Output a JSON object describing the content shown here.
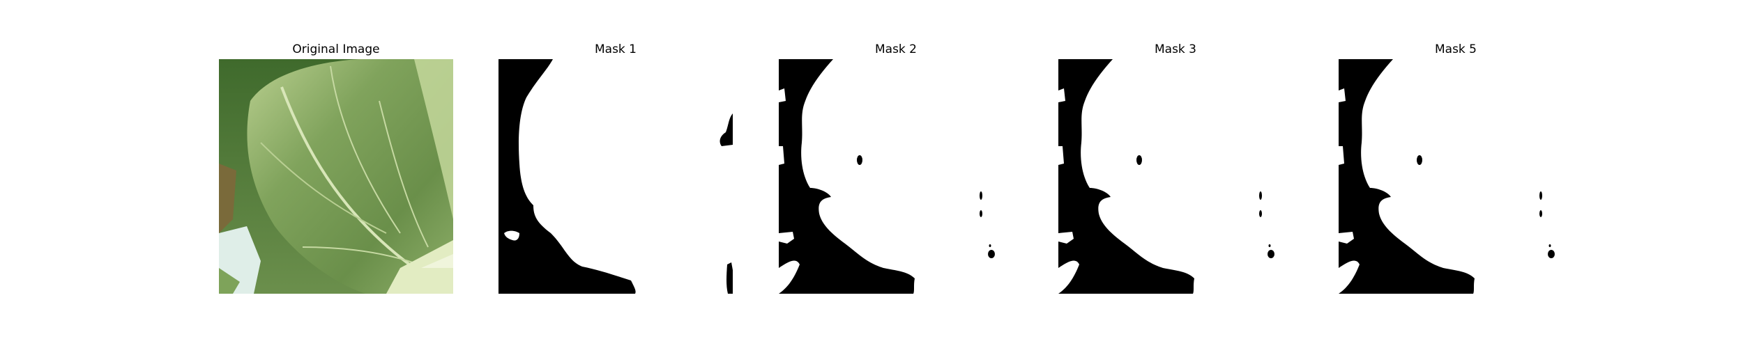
{
  "figure": {
    "panels": [
      {
        "title": "Original Image",
        "kind": "photo"
      },
      {
        "title": "Mask 1",
        "kind": "mask"
      },
      {
        "title": "Mask 2",
        "kind": "mask"
      },
      {
        "title": "Mask 3",
        "kind": "mask"
      },
      {
        "title": "Mask 5",
        "kind": "mask"
      }
    ]
  },
  "colors": {
    "mask_foreground": "#ffffff",
    "mask_background": "#000000",
    "leaf_light": "#b9cf8f",
    "leaf_mid": "#6f944e",
    "leaf_dark": "#4a6e34"
  }
}
